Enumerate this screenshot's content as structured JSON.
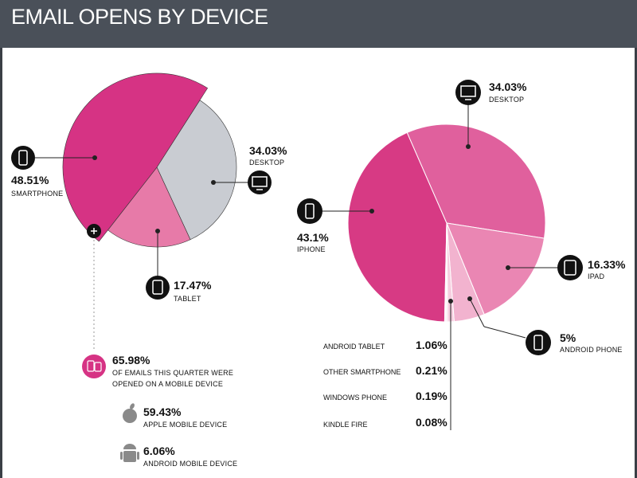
{
  "header": {
    "title": "EMAIL OPENS BY DEVICE"
  },
  "colors": {
    "header_bg": "#4a5059",
    "smartphone": "#d63384",
    "tablet": "#e77aa8",
    "desktop": "#c9ccd2",
    "iphone": "#d73a84",
    "desktop_right": "#e0609d",
    "ipad": "#ea86b3",
    "android_phone": "#f2b3cf",
    "small_slices": "#f6cfe0",
    "icon_bg": "#111111"
  },
  "chart_data": [
    {
      "type": "pie",
      "slices": [
        {
          "label": "SMARTPHONE",
          "value": 48.51,
          "value_label": "48.51%",
          "icon": "smartphone-icon"
        },
        {
          "label": "DESKTOP",
          "value": 34.03,
          "value_label": "34.03%",
          "icon": "desktop-icon"
        },
        {
          "label": "TABLET",
          "value": 17.47,
          "value_label": "17.47%",
          "icon": "tablet-icon"
        }
      ]
    },
    {
      "type": "pie",
      "slices": [
        {
          "label": "iPHONE",
          "value": 43.1,
          "value_label": "43.1%",
          "icon": "iphone-icon"
        },
        {
          "label": "DESKTOP",
          "value": 34.03,
          "value_label": "34.03%",
          "icon": "desktop-icon"
        },
        {
          "label": "iPAD",
          "value": 16.33,
          "value_label": "16.33%",
          "icon": "ipad-icon"
        },
        {
          "label": "ANDROID PHONE",
          "value": 5,
          "value_label": "5%",
          "icon": "android-phone-icon"
        },
        {
          "label": "ANDROID TABLET",
          "value": 1.06,
          "value_label": "1.06%"
        },
        {
          "label": "OTHER SMARTPHONE",
          "value": 0.21,
          "value_label": "0.21%"
        },
        {
          "label": "WINDOWS PHONE",
          "value": 0.19,
          "value_label": "0.19%"
        },
        {
          "label": "KINDLE FIRE",
          "value": 0.08,
          "value_label": "0.08%"
        }
      ]
    }
  ],
  "mobile_summary": {
    "total_pct": "65.98%",
    "total_text_line1": "OF EMAILS THIS QUARTER WERE",
    "total_text_line2": "OPENED ON A MOBILE DEVICE",
    "apple_pct": "59.43%",
    "apple_label": "APPLE MOBILE DEVICE",
    "android_pct": "6.06%",
    "android_label": "ANDROID MOBILE DEVICE"
  }
}
